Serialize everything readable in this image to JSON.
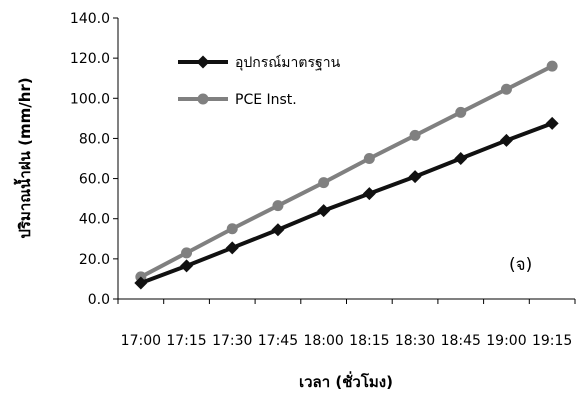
{
  "chart_data": {
    "type": "line",
    "title": "",
    "xlabel": "เวลา (ชั่วโมง)",
    "ylabel": "ปริมาณน้ำฝน (mm/hr)",
    "panel_label": "(จ)",
    "categories": [
      "17:00",
      "17:15",
      "17:30",
      "17:45",
      "18:00",
      "18:15",
      "18:30",
      "18:45",
      "19:00",
      "19:15"
    ],
    "yticks": [
      "0.0",
      "20.0",
      "40.0",
      "60.0",
      "80.0",
      "100.0",
      "120.0",
      "140.0"
    ],
    "ylim": [
      0,
      140
    ],
    "grid": false,
    "legend_position": "top-left",
    "series": [
      {
        "name": "อุปกรณ์มาตรฐาน",
        "color": "#111111",
        "marker": "diamond",
        "values": [
          8.0,
          16.5,
          25.5,
          34.5,
          44.0,
          52.5,
          61.0,
          70.0,
          79.0,
          87.5
        ]
      },
      {
        "name": "PCE Inst.",
        "color": "#808080",
        "marker": "circle",
        "values": [
          11.0,
          23.0,
          35.0,
          46.5,
          58.0,
          70.0,
          81.5,
          93.0,
          104.5,
          116.0
        ]
      }
    ]
  }
}
